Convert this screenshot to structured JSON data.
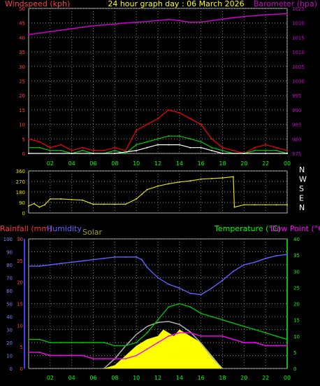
{
  "header": {
    "left_title": "Windspeed (kph)",
    "center_title": "24 hour graph day : 06 March 2026",
    "right_title": "Barometer (hpa)"
  },
  "colors": {
    "windspeed": "#ff0000",
    "gust": "#ff0000",
    "wind_avg": "#00d000",
    "wind_low": "#ffffff",
    "barometer": "#cc00cc",
    "direction": "#e0e000",
    "humidity": "#6060ff",
    "rainfall": "#ff3030",
    "solar": "#ffff00",
    "solar_max": "#b0b0b0",
    "temperature": "#00c000",
    "dewpoint": "#ff00ff",
    "grid": "#808080",
    "axis_left_top": "#ff4040",
    "axis_right_top": "#cc00cc",
    "axis_time": "#00ff00",
    "axis_bottom_left": "#8080ff",
    "axis_bottom_right": "#00ff00"
  },
  "chart_data": [
    {
      "type": "line",
      "title": "24 hour graph day : 06 March 2026",
      "xlabel": "",
      "x_ticks": [
        "02",
        "04",
        "06",
        "08",
        "10",
        "12",
        "14",
        "16",
        "18",
        "20",
        "22",
        "00"
      ],
      "left_axis": {
        "label": "Windspeed (kph)",
        "ylim": [
          0,
          50
        ],
        "ticks": [
          0,
          5,
          10,
          15,
          20,
          25,
          30,
          35,
          40,
          45,
          50
        ]
      },
      "right_axis": {
        "label": "Barometer (hpa)",
        "ylim": [
          975,
          1025
        ],
        "ticks": [
          975,
          980,
          985,
          990,
          995,
          1000,
          1005,
          1010,
          1015,
          1020,
          1025
        ]
      },
      "series": [
        {
          "name": "Barometer (hpa)",
          "axis": "right",
          "x": [
            0,
            1,
            2,
            3,
            4,
            5,
            6,
            7,
            8,
            9,
            10,
            11,
            12,
            13,
            14,
            15,
            16,
            17,
            18,
            19,
            20,
            21,
            22,
            23,
            24
          ],
          "y": [
            1016,
            1016.5,
            1017,
            1017.5,
            1018,
            1018.5,
            1019,
            1019.3,
            1019.6,
            1020,
            1020.2,
            1020.5,
            1020.8,
            1021.2,
            1020.8,
            1020.2,
            1020.3,
            1020.8,
            1021.3,
            1021.8,
            1022.2,
            1022.5,
            1022.8,
            1023,
            1023.2
          ]
        },
        {
          "name": "Windspeed gust (kph)",
          "axis": "left",
          "x": [
            0,
            1,
            2,
            3,
            4,
            5,
            6,
            7,
            8,
            9,
            10,
            11,
            12,
            13,
            14,
            15,
            16,
            17,
            18,
            19,
            20,
            21,
            22,
            23,
            24
          ],
          "y": [
            5,
            4,
            2,
            3,
            1,
            2,
            1,
            1,
            2,
            1,
            8,
            10,
            12,
            15,
            14,
            12,
            10,
            5,
            2,
            1,
            0,
            2,
            3,
            2,
            1
          ]
        },
        {
          "name": "Windspeed average (kph)",
          "axis": "left",
          "x": [
            0,
            1,
            2,
            3,
            4,
            5,
            6,
            7,
            8,
            9,
            10,
            11,
            12,
            13,
            14,
            15,
            16,
            17,
            18,
            19,
            20,
            21,
            22,
            23,
            24
          ],
          "y": [
            2,
            2,
            1,
            1,
            0,
            1,
            0,
            0,
            1,
            0,
            3,
            4,
            5,
            6,
            6,
            5,
            4,
            2,
            1,
            0,
            0,
            1,
            1,
            1,
            0
          ]
        },
        {
          "name": "Windspeed low (kph)",
          "axis": "left",
          "x": [
            0,
            2,
            4,
            6,
            8,
            10,
            11,
            12,
            13,
            14,
            15,
            16,
            17,
            18,
            20,
            22,
            24
          ],
          "y": [
            0,
            0,
            0,
            0,
            0,
            1,
            2,
            3,
            3,
            3,
            2,
            2,
            1,
            0,
            0,
            0,
            0
          ]
        }
      ]
    },
    {
      "type": "line",
      "title": "",
      "y_ticks": [
        0,
        90,
        180,
        270,
        360
      ],
      "ylim": [
        0,
        360
      ],
      "direction_labels": [
        "N",
        "W",
        "S",
        "E",
        "N"
      ],
      "series": [
        {
          "name": "Wind direction (deg)",
          "x": [
            0,
            0.5,
            1,
            1.5,
            2,
            3,
            4,
            5,
            6,
            7,
            8,
            9,
            10,
            10.5,
            11,
            12,
            13,
            14,
            15,
            16,
            17,
            18,
            19,
            19.1,
            20,
            21,
            22,
            23,
            24
          ],
          "y": [
            60,
            80,
            50,
            70,
            120,
            120,
            115,
            110,
            75,
            75,
            75,
            75,
            120,
            160,
            200,
            230,
            250,
            265,
            275,
            290,
            295,
            300,
            310,
            50,
            70,
            70,
            70,
            70,
            70
          ]
        }
      ]
    },
    {
      "type": "line",
      "title": "",
      "left_labels": [
        "Rainfall (mm)",
        "Humidity",
        "Solar"
      ],
      "right_labels": [
        "Temperature (°C)",
        "Dew Point (°C)"
      ],
      "x_ticks": [
        "02",
        "04",
        "06",
        "08",
        "10",
        "12",
        "14",
        "16",
        "18",
        "20",
        "22",
        "00"
      ],
      "humidity_axis": {
        "ylim": [
          0,
          100
        ],
        "ticks": [
          0,
          10,
          20,
          30,
          40,
          50,
          60,
          70,
          80,
          90,
          100
        ]
      },
      "rain_axis": {
        "ylim": [
          0,
          30
        ],
        "ticks": [
          0,
          5,
          10,
          15,
          20,
          25,
          30
        ]
      },
      "temp_axis": {
        "ylim": [
          0,
          40
        ],
        "ticks": [
          0,
          5,
          10,
          15,
          20,
          25,
          30,
          35,
          40
        ]
      },
      "series": [
        {
          "name": "Humidity",
          "axis": "humidity",
          "x": [
            0,
            1,
            2,
            3,
            4,
            5,
            6,
            7,
            8,
            9,
            10,
            10.5,
            11,
            12,
            13,
            14,
            15,
            16,
            17,
            18,
            19,
            20,
            21,
            22,
            23,
            24
          ],
          "y": [
            79,
            79,
            80,
            81,
            82,
            83,
            84,
            85,
            86,
            86,
            86,
            84,
            78,
            70,
            65,
            62,
            58,
            57,
            62,
            68,
            75,
            80,
            82,
            85,
            87,
            88
          ]
        },
        {
          "name": "Temperature (°C)",
          "axis": "temp",
          "x": [
            0,
            1,
            2,
            3,
            4,
            5,
            6,
            7,
            8,
            9,
            10,
            11,
            12,
            13,
            14,
            15,
            16,
            17,
            18,
            19,
            20,
            21,
            22,
            23,
            24
          ],
          "y": [
            9,
            9,
            8,
            8,
            8,
            8,
            8,
            8,
            7,
            7,
            8,
            11,
            15,
            19,
            20,
            19,
            17,
            16,
            15,
            14,
            13,
            12,
            11,
            10,
            9
          ]
        },
        {
          "name": "Dew Point (°C)",
          "axis": "temp",
          "x": [
            0,
            1,
            2,
            3,
            4,
            5,
            6,
            7,
            8,
            9,
            10,
            11,
            12,
            13,
            14,
            15,
            16,
            17,
            18,
            19,
            20,
            21,
            22,
            23,
            24
          ],
          "y": [
            5,
            5,
            4,
            4,
            4,
            4,
            3,
            3,
            3,
            3,
            4,
            6,
            8,
            10,
            11,
            11,
            10,
            10,
            10,
            9,
            8,
            8,
            7,
            7,
            7
          ]
        },
        {
          "name": "Solar",
          "axis": "temp",
          "x": [
            7,
            8,
            9,
            10,
            11,
            12,
            12.5,
            13,
            13.5,
            14,
            15,
            16,
            17,
            17.5,
            18
          ],
          "y": [
            0,
            1,
            4,
            7,
            9,
            10,
            12,
            11,
            10,
            12,
            10,
            8,
            4,
            2,
            0
          ]
        },
        {
          "name": "Solar max",
          "axis": "temp",
          "x": [
            7,
            8,
            9,
            10,
            11,
            12,
            13,
            14,
            15,
            16,
            17,
            18
          ],
          "y": [
            0,
            3,
            7,
            10.5,
            13,
            14.2,
            14.5,
            13.6,
            11.3,
            7.8,
            3.5,
            0
          ]
        }
      ]
    }
  ],
  "labels": {
    "rainfall": "Rainfall (mm)",
    "humidity": "Humidity",
    "solar": "Solar",
    "temperature": "Temperature (°C)",
    "dewpoint": "Dew Point (°C)"
  }
}
